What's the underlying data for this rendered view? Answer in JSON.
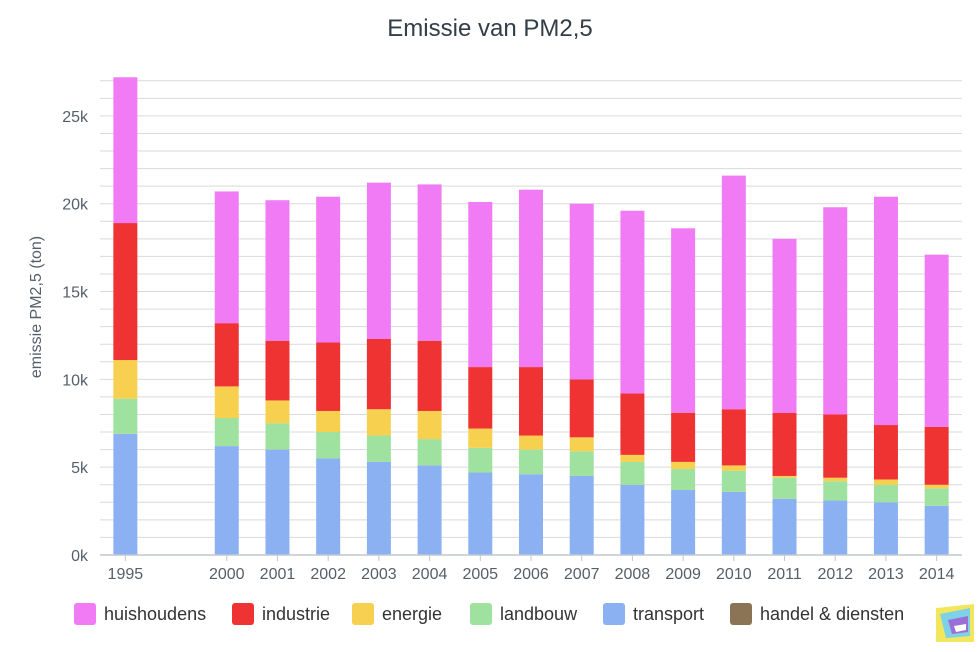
{
  "chart_data": {
    "type": "bar",
    "stacked": true,
    "title": "Emissie van PM2,5",
    "ylabel": "emissie PM2,5 (ton)",
    "xlabel": "",
    "ylim": [
      0,
      27500
    ],
    "yticks": [
      0,
      5000,
      10000,
      15000,
      20000,
      25000
    ],
    "ytick_labels": [
      "0k",
      "5k",
      "10k",
      "15k",
      "20k",
      "25k"
    ],
    "categories": [
      "1995",
      "",
      "2000",
      "2001",
      "2002",
      "2003",
      "2004",
      "2005",
      "2006",
      "2007",
      "2008",
      "2009",
      "2010",
      "2011",
      "2012",
      "2013",
      "2014"
    ],
    "grid": true,
    "legend_position": "bottom",
    "series": [
      {
        "name": "transport",
        "color": "#8bb1f3",
        "values": [
          6900,
          null,
          6200,
          6000,
          5500,
          5300,
          5100,
          4700,
          4600,
          4500,
          4000,
          3700,
          3600,
          3200,
          3100,
          3000,
          2800
        ]
      },
      {
        "name": "landbouw",
        "color": "#9fe19f",
        "values": [
          2000,
          null,
          1600,
          1500,
          1500,
          1500,
          1500,
          1400,
          1400,
          1400,
          1300,
          1200,
          1200,
          1200,
          1100,
          1000,
          1000
        ]
      },
      {
        "name": "energie",
        "color": "#f7d04f",
        "values": [
          2200,
          null,
          1800,
          1300,
          1200,
          1500,
          1600,
          1100,
          800,
          800,
          400,
          400,
          300,
          100,
          200,
          300,
          200
        ]
      },
      {
        "name": "industrie",
        "color": "#ef3333",
        "values": [
          7800,
          null,
          3600,
          3400,
          3900,
          4000,
          4000,
          3500,
          3900,
          3300,
          3500,
          2800,
          3200,
          3600,
          3600,
          3100,
          3300
        ]
      },
      {
        "name": "huishoudens",
        "color": "#f07bf5",
        "values": [
          8300,
          null,
          7500,
          8000,
          8300,
          8900,
          8900,
          9400,
          10100,
          10000,
          10400,
          10500,
          13300,
          9900,
          11800,
          13000,
          9800
        ]
      },
      {
        "name": "handel & diensten",
        "color": "#8b7355",
        "values": [
          0,
          null,
          0,
          0,
          0,
          0,
          0,
          0,
          0,
          0,
          0,
          0,
          0,
          0,
          0,
          0,
          0
        ]
      }
    ],
    "legend_order": [
      "huishoudens",
      "industrie",
      "energie",
      "landbouw",
      "transport",
      "handel & diensten"
    ]
  }
}
